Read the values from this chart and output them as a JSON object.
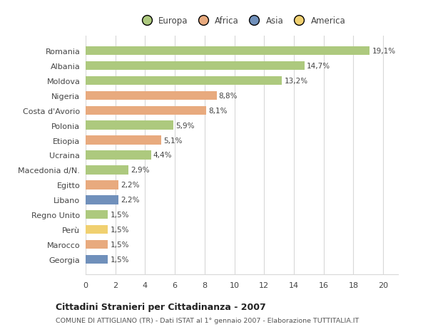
{
  "categories": [
    "Romania",
    "Albania",
    "Moldova",
    "Nigeria",
    "Costa d'Avorio",
    "Polonia",
    "Etiopia",
    "Ucraina",
    "Macedonia d/N.",
    "Egitto",
    "Libano",
    "Regno Unito",
    "Perù",
    "Marocco",
    "Georgia"
  ],
  "values": [
    19.1,
    14.7,
    13.2,
    8.8,
    8.1,
    5.9,
    5.1,
    4.4,
    2.9,
    2.2,
    2.2,
    1.5,
    1.5,
    1.5,
    1.5
  ],
  "labels": [
    "19,1%",
    "14,7%",
    "13,2%",
    "8,8%",
    "8,1%",
    "5,9%",
    "5,1%",
    "4,4%",
    "2,9%",
    "2,2%",
    "2,2%",
    "1,5%",
    "1,5%",
    "1,5%",
    "1,5%"
  ],
  "continents": [
    "Europa",
    "Europa",
    "Europa",
    "Africa",
    "Africa",
    "Europa",
    "Africa",
    "Europa",
    "Europa",
    "Africa",
    "Asia",
    "Europa",
    "America",
    "Africa",
    "Asia"
  ],
  "colors": {
    "Europa": "#adc97e",
    "Africa": "#e8aa7e",
    "Asia": "#7090bb",
    "America": "#f0d070"
  },
  "legend_labels": [
    "Europa",
    "Africa",
    "Asia",
    "America"
  ],
  "legend_colors": [
    "#adc97e",
    "#e8aa7e",
    "#7090bb",
    "#f0d070"
  ],
  "xlim": [
    0,
    21
  ],
  "xticks": [
    0,
    2,
    4,
    6,
    8,
    10,
    12,
    14,
    16,
    18,
    20
  ],
  "title": "Cittadini Stranieri per Cittadinanza - 2007",
  "subtitle": "COMUNE DI ATTIGLIANO (TR) - Dati ISTAT al 1° gennaio 2007 - Elaborazione TUTTITALIA.IT",
  "background_color": "#ffffff",
  "grid_color": "#d8d8d8",
  "bar_height": 0.6
}
